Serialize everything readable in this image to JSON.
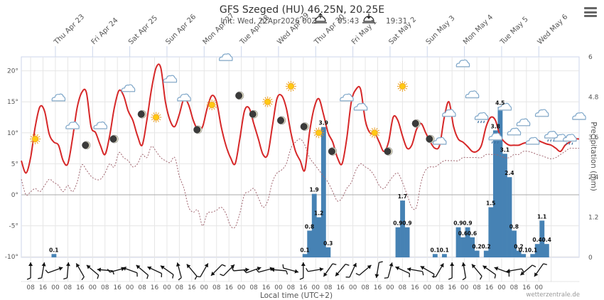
{
  "header": {
    "title": "GFS Szeged (HU) 46.25N, 20.25E",
    "init_label": "Init: Wed, 22Apr2026 00Z",
    "sunrise": "05:43",
    "sunset": "19:31",
    "menu_icon": "hamburger-menu-icon"
  },
  "chart_data": {
    "type": "line+bar",
    "title": "GFS Szeged (HU) 46.25N, 20.25E",
    "subtitle": "Init: Wed, 22Apr2026 00Z  sunrise 05:43  sunset 19:31",
    "xlabel": "Local time (UTC+2)",
    "ylabel_left": "Temperature (°)",
    "ylabel_right": "Precipitation (mm)",
    "ylim_left": [
      -10,
      22
    ],
    "ylim_right": [
      0,
      6
    ],
    "left_ticks": [
      "-10°",
      "-5°",
      "0°",
      "5°",
      "10°",
      "15°",
      "20°"
    ],
    "right_ticks": [
      "0",
      "1.2",
      "2.4",
      "3.6",
      "4.8",
      "6"
    ],
    "hour_ticks": [
      "08",
      "16",
      "00",
      "08",
      "16",
      "00",
      "08",
      "16",
      "00",
      "08",
      "16",
      "00",
      "08",
      "16",
      "00",
      "08",
      "16",
      "00",
      "08",
      "16",
      "00",
      "08",
      "16",
      "00",
      "08",
      "16",
      "00",
      "08",
      "16",
      "00",
      "08",
      "16",
      "00",
      "08",
      "16",
      "00",
      "08",
      "16",
      "00",
      "08",
      "16",
      "00"
    ],
    "day_labels": [
      "Thu Apr 23",
      "Fri Apr 24",
      "Sat Apr 25",
      "Sun Apr 26",
      "Mon Apr 27",
      "Tue Apr 28",
      "Wed Apr 29",
      "Thu Apr 30",
      "Fri May 1",
      "Sat May 2",
      "Sun May 3",
      "Mon May 4",
      "Tue May 5",
      "Wed May 6"
    ],
    "time_step_hours": 3,
    "start": "Wed Apr 22 02:00",
    "series": [
      {
        "name": "Temperature",
        "color": "#d62728",
        "style": "solid",
        "values": [
          5.5,
          3.5,
          6,
          11,
          14.2,
          13.5,
          9.8,
          8.5,
          8,
          5.5,
          5,
          9,
          14,
          16.5,
          16.5,
          11,
          10,
          8,
          6.5,
          9.5,
          14,
          16.8,
          16,
          13.5,
          12,
          9.5,
          8,
          12,
          17,
          20.5,
          20.5,
          15,
          12,
          11,
          13,
          15.5,
          14.5,
          12,
          10.5,
          11,
          14,
          16,
          15,
          11,
          8,
          6,
          5,
          9,
          13.5,
          14,
          11.5,
          9,
          6.5,
          6.5,
          11,
          15.5,
          16,
          14,
          10,
          7,
          5.5,
          4,
          10,
          14,
          15.5,
          13,
          10,
          8.5,
          6,
          5,
          9,
          15,
          17,
          17,
          12,
          10,
          10,
          8.5,
          7,
          8.5,
          12.5,
          12,
          9.5,
          7.5,
          8,
          10.5,
          11.5,
          10,
          8.5,
          7.5,
          8,
          12.5,
          15,
          11,
          9,
          8.5,
          7.8,
          7,
          7,
          8,
          11,
          12.5,
          12,
          9.5,
          8.5,
          8,
          8,
          8,
          8.3,
          8.5,
          8.8,
          8.8,
          8.5,
          8.2,
          8,
          7.5,
          7,
          8,
          8.5,
          9,
          9,
          9,
          8.5,
          7.5,
          6.5,
          6.5,
          7.5,
          8.5,
          10,
          11,
          10,
          8.5,
          8,
          8,
          10,
          12,
          12.5,
          11,
          9.5
        ]
      },
      {
        "name": "Dew point",
        "color": "#a05a5a",
        "style": "dashed",
        "values": [
          2.5,
          0,
          0.5,
          1,
          0.5,
          1.5,
          2.5,
          2,
          1.5,
          0.5,
          1.5,
          0.5,
          2,
          4.8,
          4,
          3,
          2.5,
          2.5,
          3.5,
          5,
          4.5,
          6.8,
          6,
          5.5,
          4.5,
          5,
          6.5,
          6,
          7.8,
          7,
          6,
          5.5,
          5.2,
          6,
          3,
          1,
          -2,
          -2.8,
          -2.5,
          -5,
          -3,
          -2.8,
          -2.5,
          -2,
          -3,
          -5,
          -5.2,
          -3,
          0,
          0.5,
          1,
          -0.5,
          -2,
          -1,
          2,
          3.5,
          4,
          5,
          7.5,
          8.5,
          9,
          8,
          6,
          5,
          4,
          3,
          2,
          0.5,
          -1,
          -0.5,
          1,
          2,
          4,
          5,
          4.5,
          4,
          3,
          1.5,
          1,
          2,
          3,
          3.5,
          2,
          0,
          -2,
          -2,
          2,
          4,
          4.5,
          4.5,
          5,
          5.5,
          5.5,
          5.5,
          5.5,
          6,
          6,
          6,
          6,
          6,
          6.5,
          6.5,
          6.5,
          6.3,
          6,
          6,
          6.5,
          6.5,
          7,
          7,
          6.8,
          6.5,
          6.3,
          6,
          5.8,
          6,
          6.5,
          7,
          7.5,
          7.5,
          7.5,
          6.8,
          6,
          5.5,
          5.3,
          5.5,
          6,
          6,
          6,
          6,
          5.5,
          6,
          6.5,
          7.5,
          8.5,
          8,
          7.2
        ]
      },
      {
        "name": "Precipitation",
        "color": "#4682b4",
        "type": "bar",
        "bars": [
          {
            "t": "Wed Apr 22 23:00",
            "value": 0.1
          },
          {
            "t": "Wed Apr 29 17:00",
            "value": 0.1
          },
          {
            "t": "Wed Apr 29 20:00",
            "value": 0.8
          },
          {
            "t": "Wed Apr 29 23:00",
            "value": 1.9
          },
          {
            "t": "Thu Apr 30 02:00",
            "value": 1.2
          },
          {
            "t": "Thu Apr 30 05:00",
            "value": 3.9
          },
          {
            "t": "Thu Apr 30 08:00",
            "value": 0.3
          },
          {
            "t": "Sat May 2 05:00",
            "value": 0.9
          },
          {
            "t": "Sat May 2 08:00",
            "value": 1.7
          },
          {
            "t": "Sat May 2 11:00",
            "value": 0.9
          },
          {
            "t": "Sun May 3 05:00",
            "value": 0.1
          },
          {
            "t": "Sun May 3 11:00",
            "value": 0.1
          },
          {
            "t": "Sun May 3 20:00",
            "value": 0.9
          },
          {
            "t": "Sun May 3 23:00",
            "value": 0.6
          },
          {
            "t": "Mon May 4 02:00",
            "value": 0.9
          },
          {
            "t": "Mon May 4 05:00",
            "value": 0.6
          },
          {
            "t": "Mon May 4 08:00",
            "value": 0.2
          },
          {
            "t": "Mon May 4 14:00",
            "value": 0.2
          },
          {
            "t": "Mon May 4 17:00",
            "value": 1.5
          },
          {
            "t": "Mon May 4 20:00",
            "value": 3.8
          },
          {
            "t": "Mon May 4 23:00",
            "value": 4.5
          },
          {
            "t": "Tue May 5 02:00",
            "value": 3.1
          },
          {
            "t": "Tue May 5 05:00",
            "value": 2.4
          },
          {
            "t": "Tue May 5 08:00",
            "value": 0.8
          },
          {
            "t": "Tue May 5 11:00",
            "value": 0.2
          },
          {
            "t": "Tue May 5 14:00",
            "value": 0.1
          },
          {
            "t": "Tue May 5 20:00",
            "value": 0.1
          },
          {
            "t": "Tue May 5 23:00",
            "value": 0.4
          },
          {
            "t": "Wed May 6 02:00",
            "value": 1.1
          },
          {
            "t": "Wed May 6 05:00",
            "value": 0.4
          }
        ]
      }
    ],
    "weather_icons": [
      {
        "i": 3,
        "icon": "sun",
        "temp": 9
      },
      {
        "i": 8,
        "icon": "cloud",
        "temp": 15.5
      },
      {
        "i": 11,
        "icon": "cloud",
        "temp": 11
      },
      {
        "i": 14,
        "icon": "moon",
        "temp": 8
      },
      {
        "i": 17,
        "icon": "cloud",
        "temp": 11
      },
      {
        "i": 20,
        "icon": "moon",
        "temp": 9
      },
      {
        "i": 23,
        "icon": "cloud",
        "temp": 17
      },
      {
        "i": 26,
        "icon": "moon",
        "temp": 13
      },
      {
        "i": 29,
        "icon": "sun",
        "temp": 12.5
      },
      {
        "i": 32,
        "icon": "cloud",
        "temp": 18.5
      },
      {
        "i": 35,
        "icon": "cloud",
        "temp": 15.5
      },
      {
        "i": 38,
        "icon": "moon",
        "temp": 10.5
      },
      {
        "i": 41,
        "icon": "sun",
        "temp": 14.5
      },
      {
        "i": 44,
        "icon": "cloud",
        "temp": 22
      },
      {
        "i": 47,
        "icon": "moon",
        "temp": 16
      },
      {
        "i": 50,
        "icon": "moon",
        "temp": 13
      },
      {
        "i": 53,
        "icon": "sun",
        "temp": 15
      },
      {
        "i": 56,
        "icon": "moon",
        "temp": 12
      },
      {
        "i": 58,
        "icon": "sun",
        "temp": 17.5
      },
      {
        "i": 61,
        "icon": "moon",
        "temp": 11
      },
      {
        "i": 64,
        "icon": "sun",
        "temp": 10
      },
      {
        "i": 67,
        "icon": "moon",
        "temp": 7
      },
      {
        "i": 70,
        "icon": "cloud",
        "temp": 15.5
      },
      {
        "i": 73,
        "icon": "cloud",
        "temp": 14
      },
      {
        "i": 76,
        "icon": "sun",
        "temp": 10
      },
      {
        "i": 79,
        "icon": "moon",
        "temp": 7
      },
      {
        "i": 82,
        "icon": "sun",
        "temp": 17.5
      },
      {
        "i": 85,
        "icon": "moon",
        "temp": 11.5
      },
      {
        "i": 88,
        "icon": "moon",
        "temp": 9
      },
      {
        "i": 90,
        "icon": "cloud",
        "temp": 8.5
      },
      {
        "i": 92,
        "icon": "cloud",
        "temp": 13
      },
      {
        "i": 95,
        "icon": "cloud",
        "temp": 21
      },
      {
        "i": 97,
        "icon": "cloud",
        "temp": 16
      },
      {
        "i": 99,
        "icon": "rain",
        "temp": 12.5
      },
      {
        "i": 102,
        "icon": "rain",
        "temp": 9.2
      },
      {
        "i": 104,
        "icon": "cloud",
        "temp": 14
      },
      {
        "i": 106,
        "icon": "cloud",
        "temp": 10
      },
      {
        "i": 108,
        "icon": "cloud",
        "temp": 11.5
      },
      {
        "i": 110,
        "icon": "cloud",
        "temp": 8.5
      },
      {
        "i": 112,
        "icon": "cloud",
        "temp": 13
      },
      {
        "i": 114,
        "icon": "rain",
        "temp": 9.5
      },
      {
        "i": 116,
        "icon": "cloud",
        "temp": 9
      },
      {
        "i": 118,
        "icon": "rain",
        "temp": 9
      },
      {
        "i": 120,
        "icon": "cloud",
        "temp": 12.5
      },
      {
        "i": 122,
        "icon": "cloud",
        "temp": 11
      },
      {
        "i": 124,
        "icon": "rain",
        "temp": 10
      },
      {
        "i": 126,
        "icon": "rain",
        "temp": 10
      },
      {
        "i": 128,
        "icon": "rain",
        "temp": 11
      },
      {
        "i": 130,
        "icon": "rain",
        "temp": 10.5
      },
      {
        "i": 132,
        "icon": "cloud",
        "temp": 10
      },
      {
        "i": 134,
        "icon": "rain",
        "temp": 10.5
      },
      {
        "i": 136,
        "icon": "cloud",
        "temp": 10.5
      },
      {
        "i": 138,
        "icon": "cloud",
        "temp": 9
      },
      {
        "i": 140,
        "icon": "cloud",
        "temp": 12.2
      },
      {
        "i": 142,
        "icon": "rain",
        "temp": 11
      },
      {
        "i": 144,
        "icon": "cloud",
        "temp": 13.5
      },
      {
        "i": 146,
        "icon": "cloud",
        "temp": 11
      }
    ],
    "wind_dirs_deg": [
      180,
      190,
      250,
      185,
      150,
      130,
      95,
      255,
      110,
      130,
      115,
      125,
      165,
      140,
      210,
      45,
      225,
      265,
      250,
      255,
      95,
      285,
      180,
      260,
      35,
      40,
      205,
      230,
      10,
      195,
      115,
      100,
      120,
      210,
      180,
      170,
      140,
      125,
      110,
      80,
      50,
      35
    ],
    "grid": true
  },
  "footer": {
    "xlabel": "Local time (UTC+2)",
    "credit": "wetterzentrale.de"
  }
}
